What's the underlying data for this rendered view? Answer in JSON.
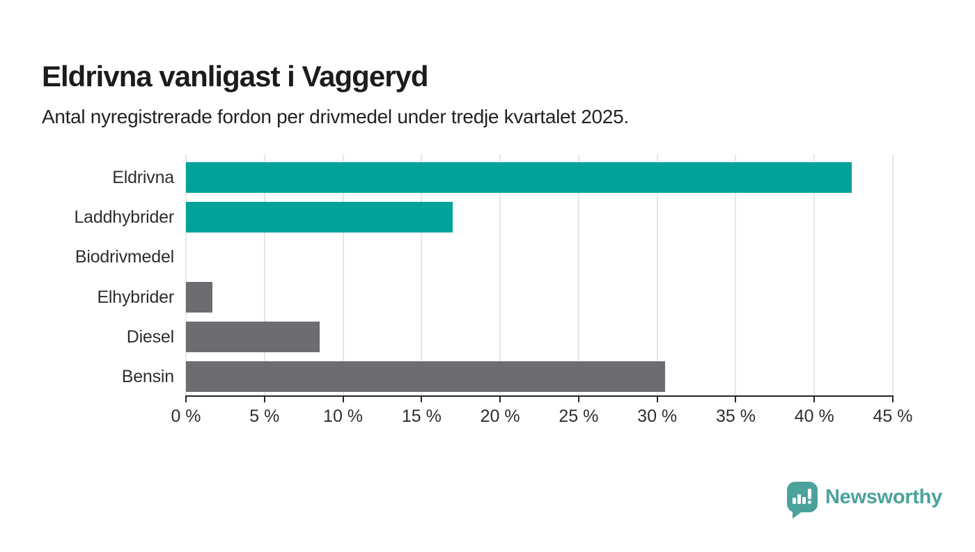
{
  "header": {
    "title": "Eldrivna vanligast i Vaggeryd",
    "subtitle": "Antal nyregistrerade fordon per drivmedel under tredje kvartalet 2025."
  },
  "chart_data": {
    "type": "bar",
    "orientation": "horizontal",
    "title": "Eldrivna vanligast i Vaggeryd",
    "subtitle": "Antal nyregistrerade fordon per drivmedel under tredje kvartalet 2025.",
    "categories": [
      "Eldrivna",
      "Laddhybrider",
      "Biodrivmedel",
      "Elhybrider",
      "Diesel",
      "Bensin"
    ],
    "values": [
      42.4,
      17.0,
      0,
      1.7,
      8.5,
      30.5
    ],
    "value_unit": "%",
    "bar_colors": [
      "#00a29a",
      "#00a29a",
      "#6c6c71",
      "#6c6c71",
      "#6c6c71",
      "#6c6c71"
    ],
    "xlabel": "",
    "ylabel": "",
    "xlim": [
      0,
      45
    ],
    "x_tick_step": 5,
    "x_tick_labels": [
      "0 %",
      "5 %",
      "10 %",
      "15 %",
      "20 %",
      "25 %",
      "30 %",
      "35 %",
      "40 %",
      "45 %"
    ],
    "grid": true,
    "legend": false
  },
  "branding": {
    "logo_text": "Newsworthy",
    "logo_color": "#4aa29b",
    "logo_icon": "bar-chart-speech-bubble-icon"
  },
  "colors": {
    "accent_teal": "#00a29a",
    "neutral_gray": "#6c6c71",
    "axis": "#262626",
    "gridline": "#e7e7e7",
    "background": "#ffffff"
  }
}
